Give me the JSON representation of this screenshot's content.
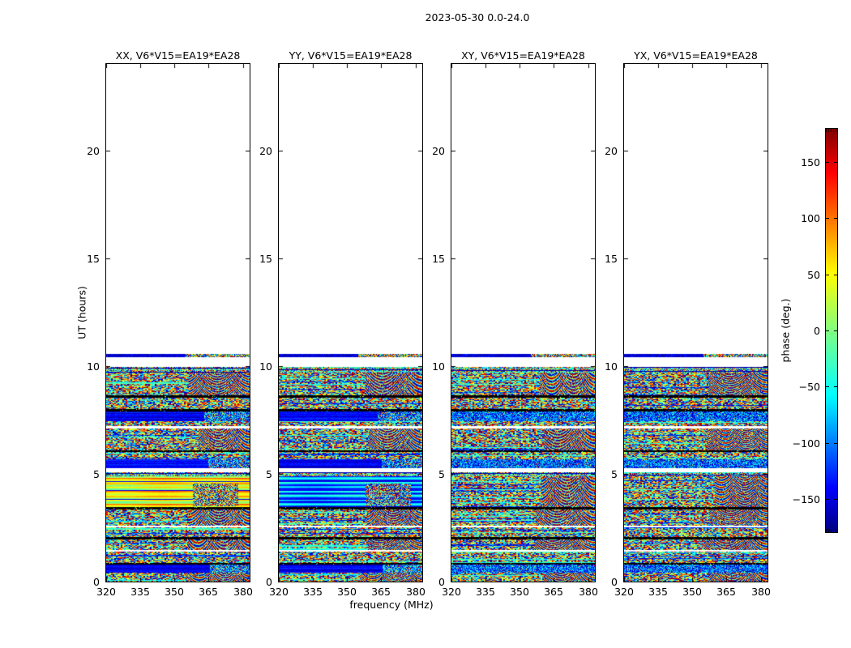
{
  "figure": {
    "background": "#ffffff",
    "text_color": "#000000"
  },
  "chart_data": {
    "type": "heatmap",
    "suptitle": "2023-05-30 0.0-24.0",
    "date": "2023-05-30",
    "baseline": "V6*V15=EA19*EA28",
    "polarizations": [
      "XX",
      "YY",
      "XY",
      "YX"
    ],
    "xlabel": "frequency (MHz)",
    "ylabel": "UT (hours)",
    "x_ticks": [
      320,
      335,
      350,
      365,
      380
    ],
    "x_range": [
      320,
      383
    ],
    "y_ticks": [
      0,
      5,
      10,
      15,
      20
    ],
    "y_range": [
      0,
      24
    ],
    "data_time_extent_hours": [
      0,
      10.56
    ],
    "colormap": "jet",
    "data_description": "Phase waterfall (time vs frequency) per polarization; random-looking phase noise bands from UT 0 to ~10.5, blank above; XX and YY contain smooth coherent phase bands near UT 3.5-4.9 and blue bands near UT 0.5, 5.4, 7.6; black row separators and white gaps aligned across all four panels.",
    "panels": [
      {
        "pol": "XX",
        "title": "XX, V6*V15=EA19*EA28",
        "style": "smooth-warm"
      },
      {
        "pol": "YY",
        "title": "YY, V6*V15=EA19*EA28",
        "style": "smooth-cool"
      },
      {
        "pol": "XY",
        "title": "XY, V6*V15=EA19*EA28",
        "style": "noise"
      },
      {
        "pol": "YX",
        "title": "YX, V6*V15=EA19*EA28",
        "style": "noise"
      }
    ],
    "colorbar": {
      "label": "phase (deg.)",
      "range": [
        -180,
        180
      ],
      "ticks": [
        150,
        100,
        50,
        0,
        -50,
        -100,
        -150
      ],
      "tick_labels": [
        "150",
        "100",
        "50",
        "0",
        "−50",
        "−100",
        "−150"
      ]
    },
    "colormap_stops": [
      {
        "t": 0.0,
        "c": "#00007f"
      },
      {
        "t": 0.11,
        "c": "#0000ff"
      },
      {
        "t": 0.34,
        "c": "#00ffff"
      },
      {
        "t": 0.5,
        "c": "#80ff80"
      },
      {
        "t": 0.64,
        "c": "#ffff00"
      },
      {
        "t": 0.76,
        "c": "#ff8400"
      },
      {
        "t": 0.89,
        "c": "#ff0000"
      },
      {
        "t": 1.0,
        "c": "#7f0000"
      }
    ],
    "bands": [
      {
        "from": 0.0,
        "to": 0.44,
        "type": "noiseM"
      },
      {
        "from": 0.44,
        "to": 0.8,
        "type": "blue"
      },
      {
        "from": 0.8,
        "to": 0.9,
        "type": "black"
      },
      {
        "from": 0.9,
        "to": 1.4,
        "type": "noise"
      },
      {
        "from": 1.4,
        "to": 1.5,
        "type": "white"
      },
      {
        "from": 1.5,
        "to": 1.97,
        "type": "noiseM"
      },
      {
        "from": 1.97,
        "to": 2.08,
        "type": "black"
      },
      {
        "from": 2.08,
        "to": 2.52,
        "type": "noise"
      },
      {
        "from": 2.52,
        "to": 2.62,
        "type": "white"
      },
      {
        "from": 2.62,
        "to": 3.38,
        "type": "noiseM"
      },
      {
        "from": 3.38,
        "to": 3.46,
        "type": "black"
      },
      {
        "from": 3.46,
        "to": 4.9,
        "type": "smooth"
      },
      {
        "from": 4.9,
        "to": 5.1,
        "type": "noiseThin"
      },
      {
        "from": 5.1,
        "to": 5.26,
        "type": "white"
      },
      {
        "from": 5.26,
        "to": 5.68,
        "type": "blue"
      },
      {
        "from": 5.68,
        "to": 6.04,
        "type": "noise"
      },
      {
        "from": 6.04,
        "to": 6.12,
        "type": "black"
      },
      {
        "from": 6.12,
        "to": 7.12,
        "type": "noiseM"
      },
      {
        "from": 7.12,
        "to": 7.24,
        "type": "white"
      },
      {
        "from": 7.24,
        "to": 7.46,
        "type": "noise"
      },
      {
        "from": 7.46,
        "to": 7.92,
        "type": "blue"
      },
      {
        "from": 7.92,
        "to": 8.02,
        "type": "black"
      },
      {
        "from": 8.02,
        "to": 8.54,
        "type": "noise"
      },
      {
        "from": 8.54,
        "to": 8.64,
        "type": "black"
      },
      {
        "from": 8.64,
        "to": 9.72,
        "type": "noiseM"
      },
      {
        "from": 9.72,
        "to": 9.98,
        "type": "noiseThin"
      },
      {
        "from": 9.98,
        "to": 10.44,
        "type": "white"
      },
      {
        "from": 10.44,
        "to": 10.56,
        "type": "edge"
      }
    ]
  }
}
